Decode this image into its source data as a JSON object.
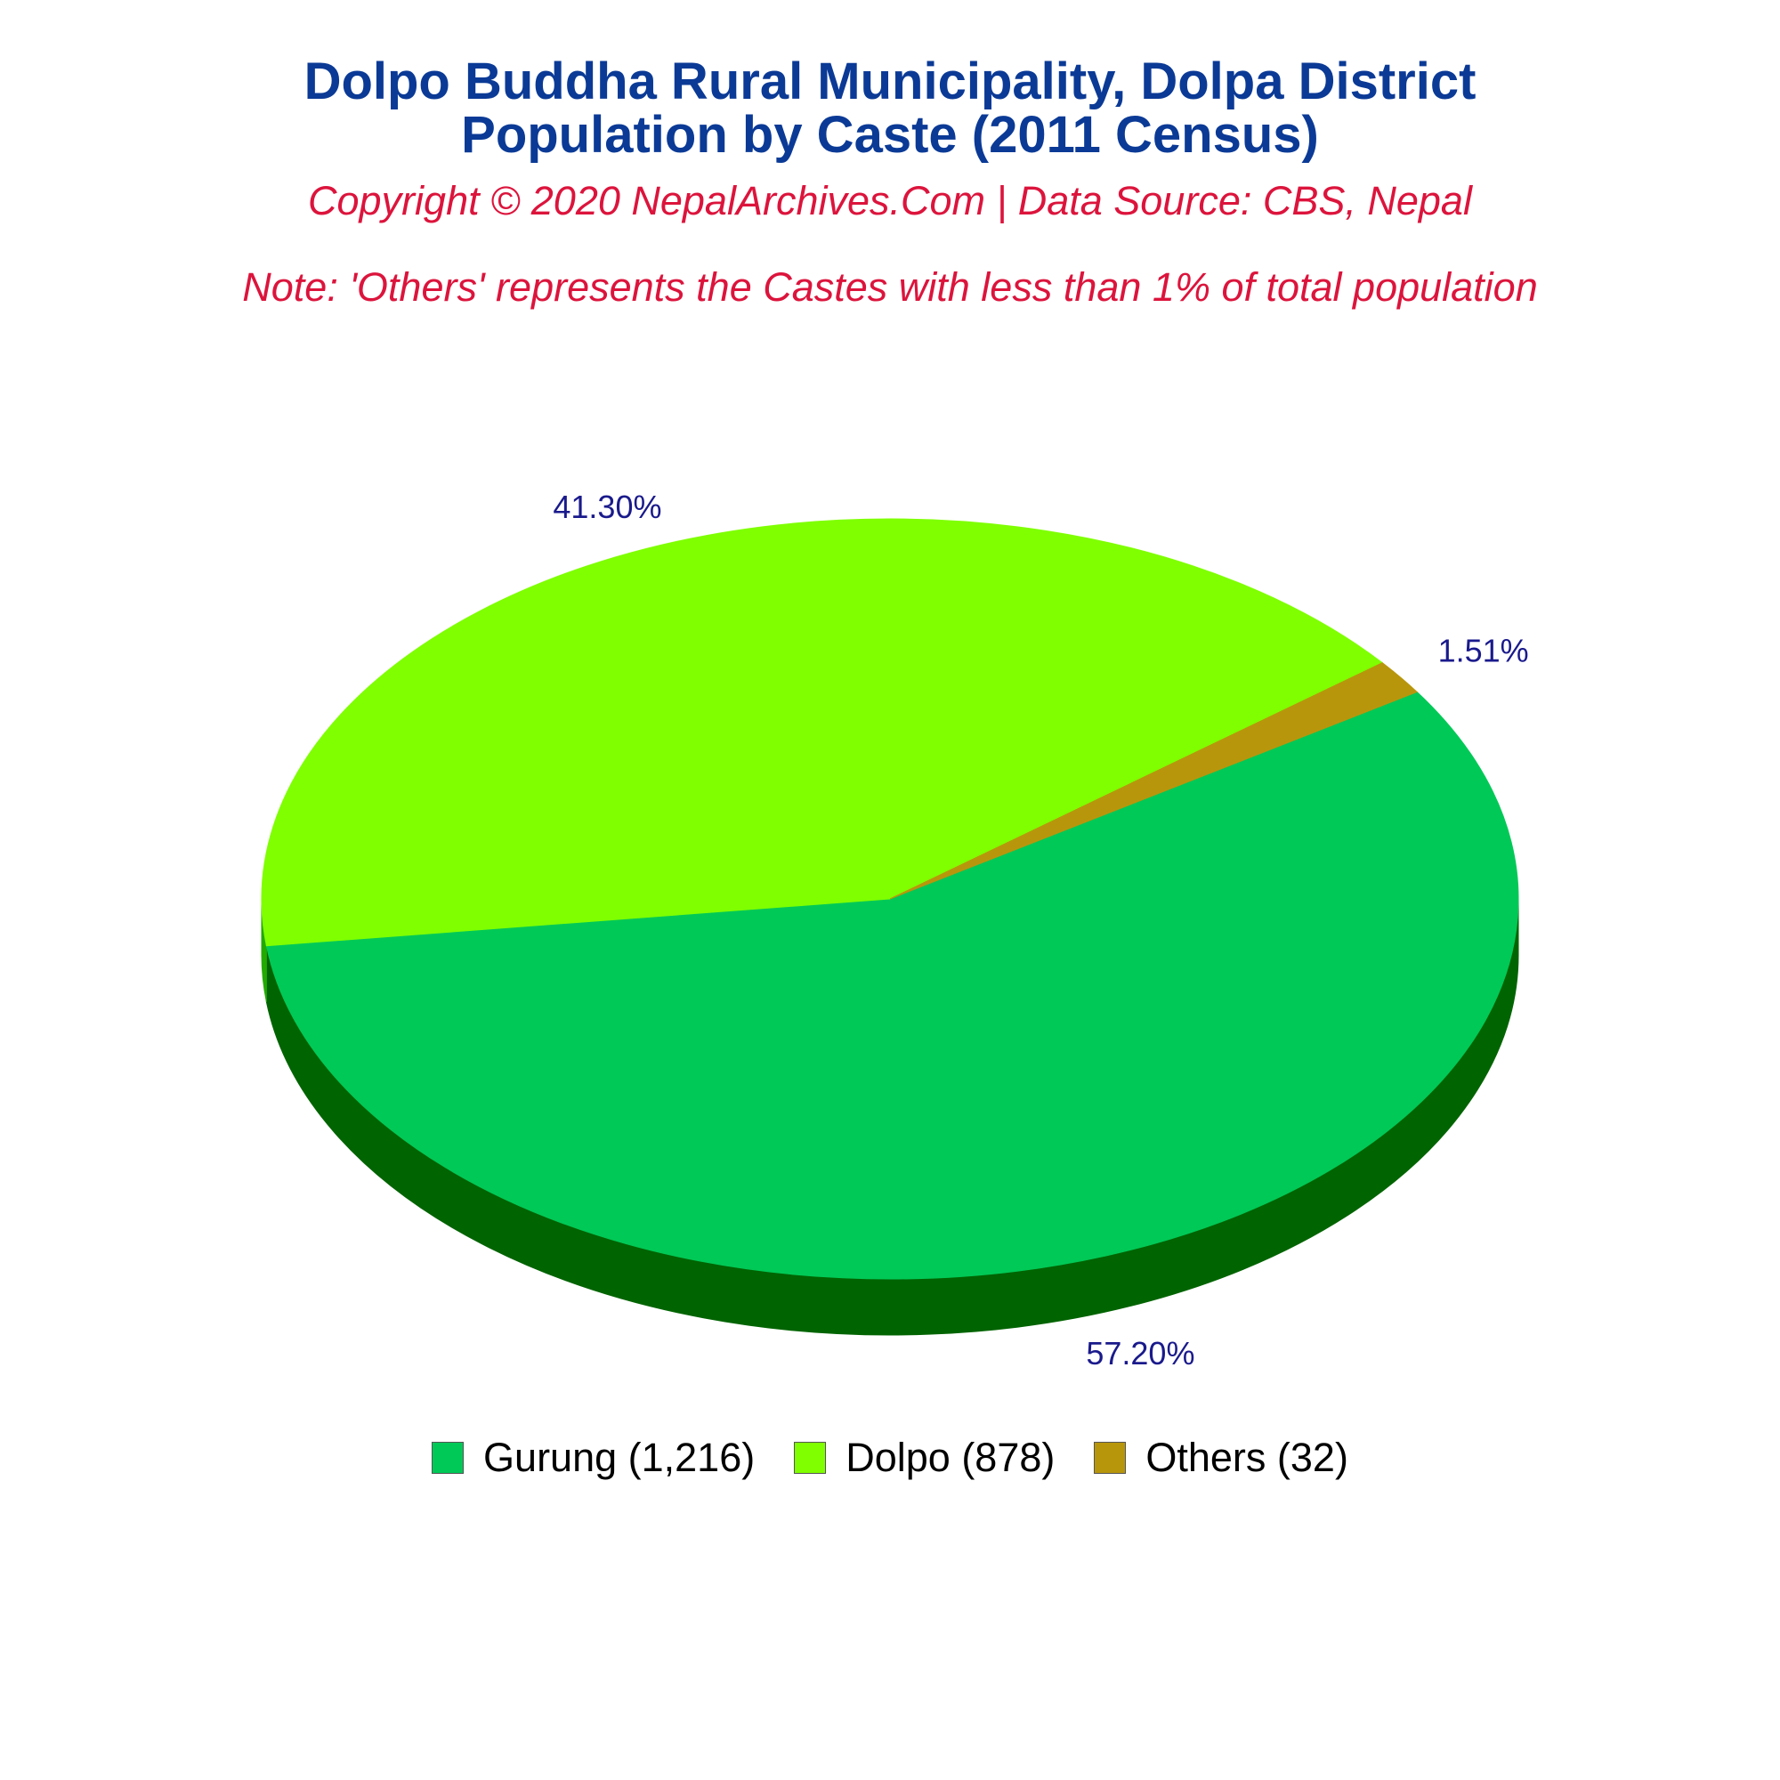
{
  "chart_data": {
    "type": "pie",
    "title": "Dolpo Buddha Rural Municipality, Dolpa District",
    "title_line2": "Population by Caste (2011 Census)",
    "subtitle": "Copyright © 2020 NepalArchives.Com | Data Source: CBS, Nepal",
    "note": "Note: 'Others' represents the Castes with less than 1% of total population",
    "style": "3d",
    "legend_position": "bottom",
    "slices": [
      {
        "label": "Gurung",
        "value": 1216,
        "percent": 57.2,
        "percent_label": "57.20%",
        "legend_label": "Gurung (1,216)",
        "color": "#00c957",
        "side_color": "#006400"
      },
      {
        "label": "Dolpo",
        "value": 878,
        "percent": 41.3,
        "percent_label": "41.30%",
        "legend_label": "Dolpo (878)",
        "color": "#7fff00",
        "side_color": "#22aa00"
      },
      {
        "label": "Others",
        "value": 32,
        "percent": 1.51,
        "percent_label": "1.51%",
        "legend_label": "Others (32)",
        "color": "#b8960c",
        "side_color": "#7a6408"
      }
    ]
  }
}
